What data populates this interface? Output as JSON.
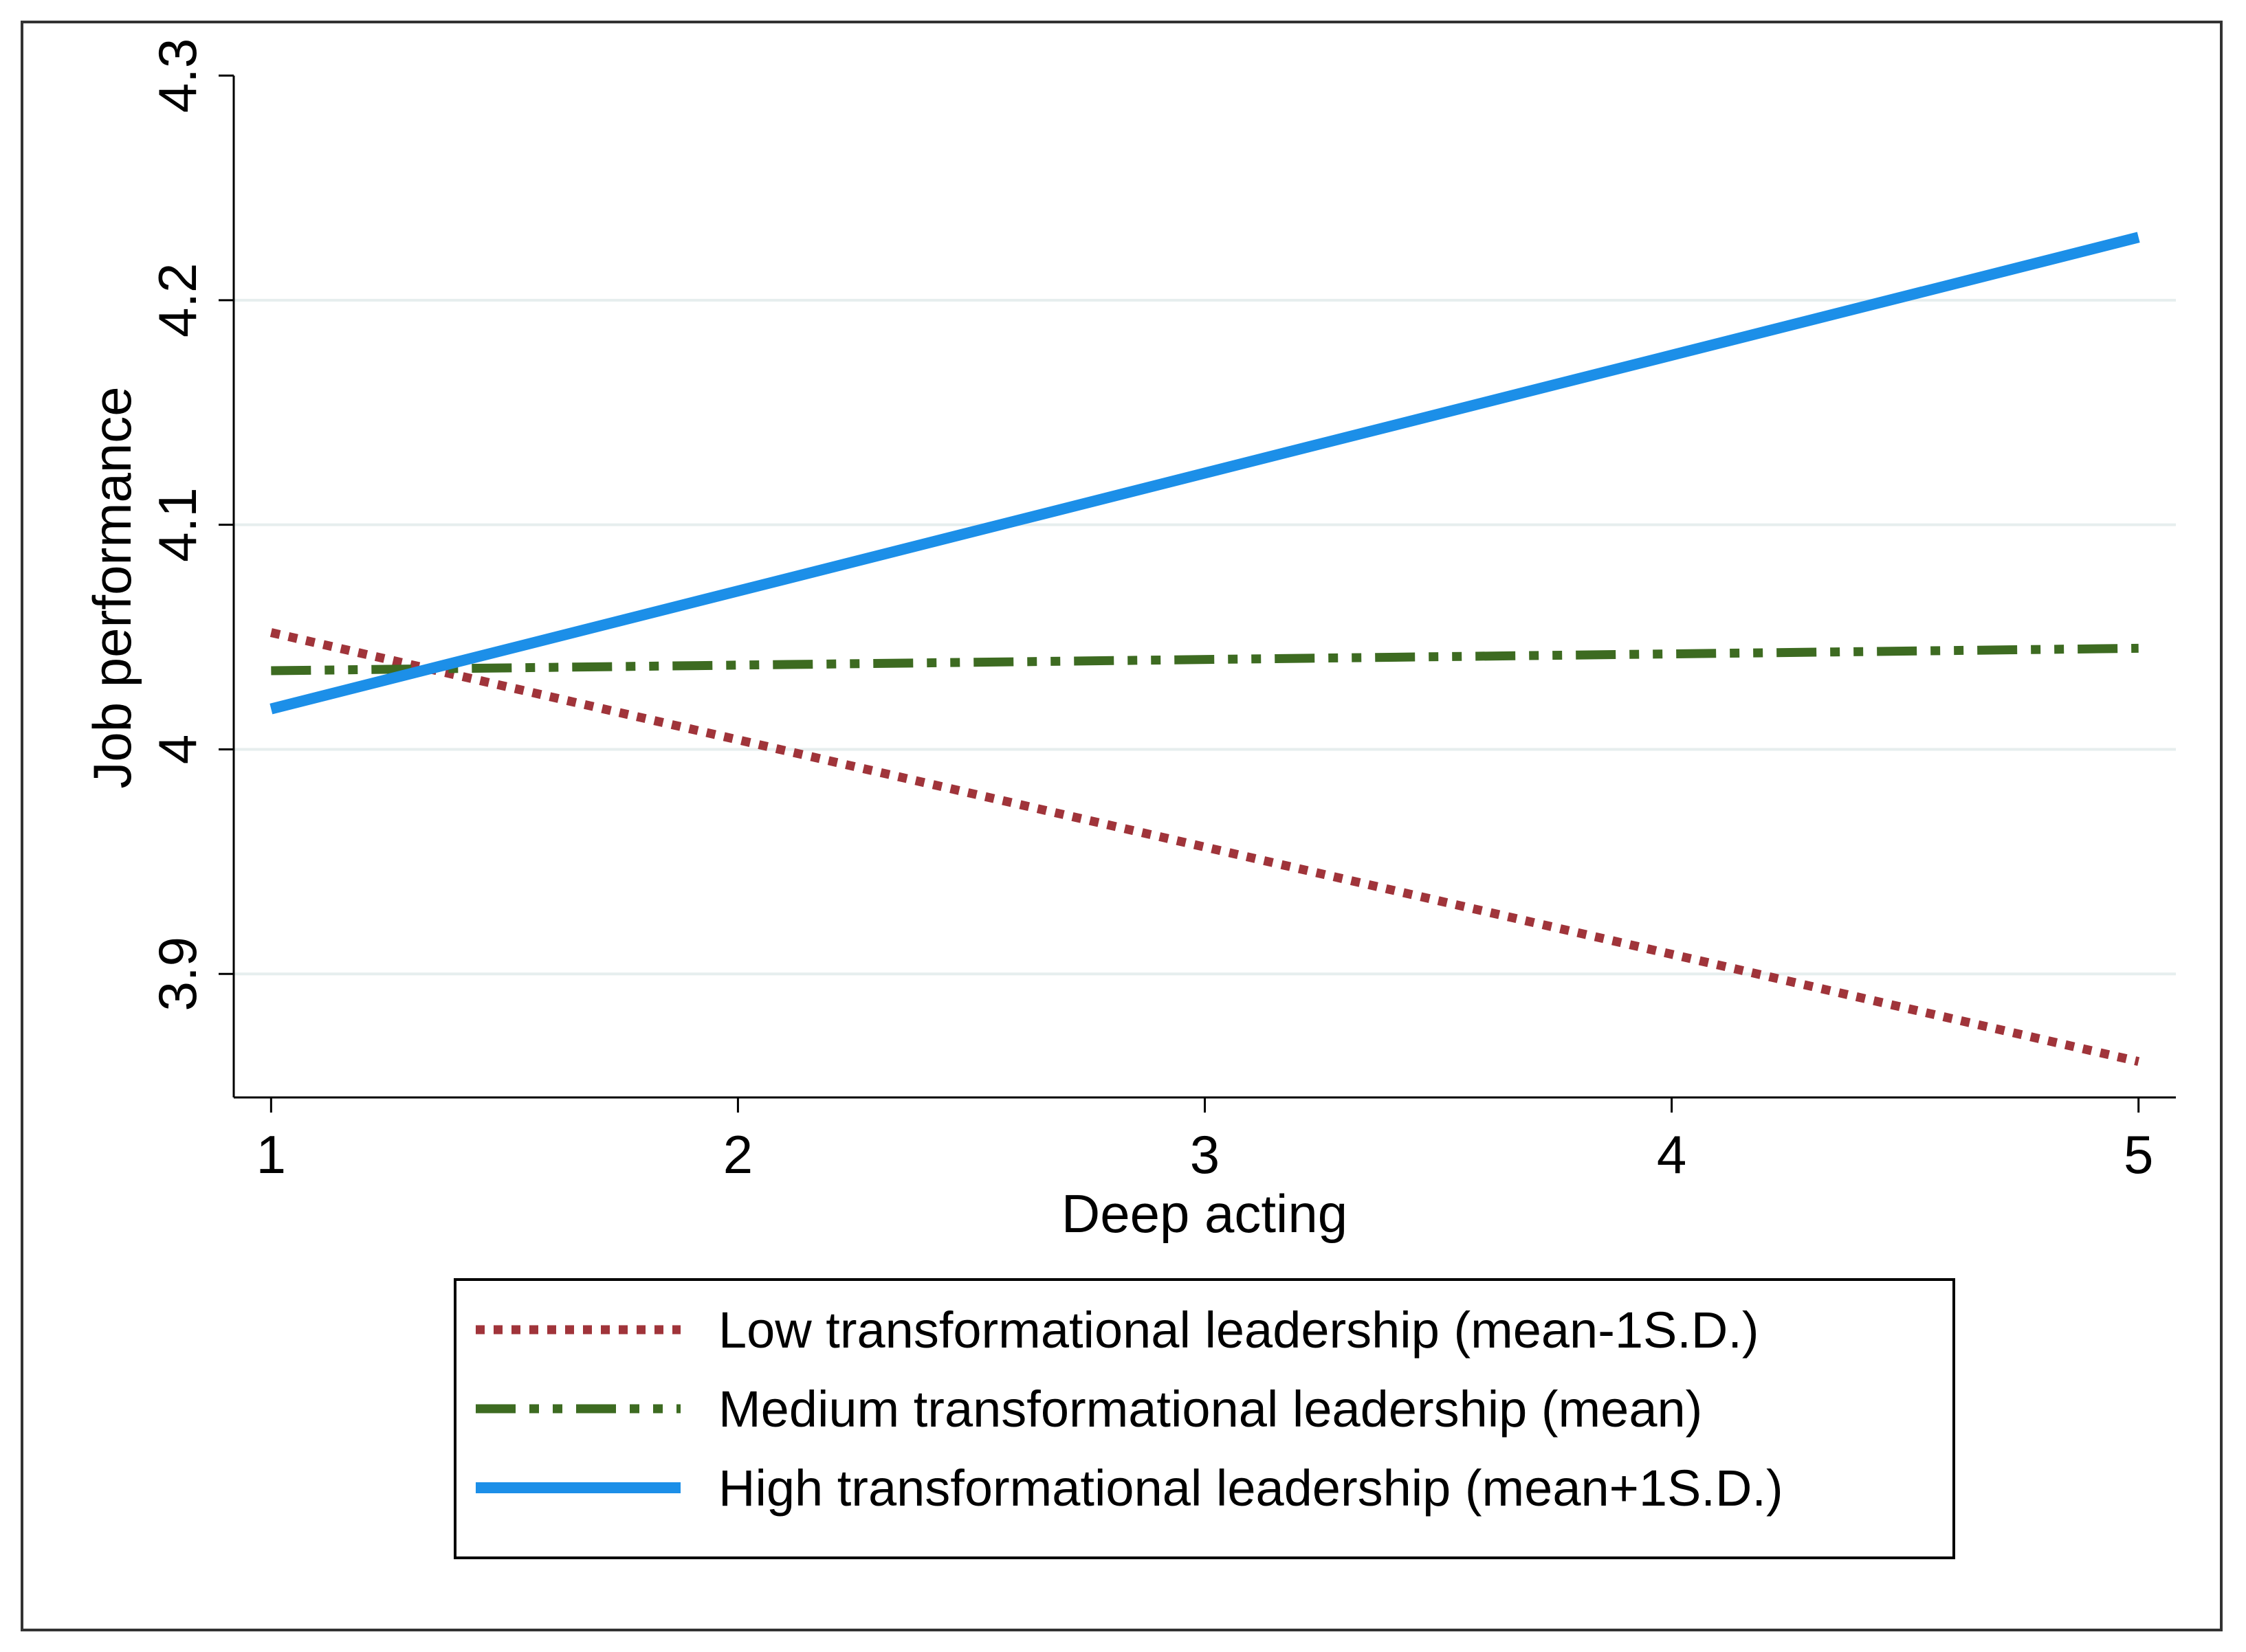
{
  "chart_data": {
    "type": "line",
    "title": "",
    "xlabel": "Deep acting",
    "ylabel": "Job performance",
    "xlim": [
      0.92,
      5.08
    ],
    "ylim": [
      3.845,
      4.3
    ],
    "x_ticks": [
      "1",
      "2",
      "3",
      "4",
      "5"
    ],
    "y_ticks": [
      "3.9",
      "4",
      "4.1",
      "4.2",
      "4.3"
    ],
    "grid": "horizontal",
    "legend_position": "bottom",
    "series": [
      {
        "name": "Low transformational leadership (mean-1S.D.)",
        "x": [
          1,
          5
        ],
        "y": [
          4.052,
          3.861
        ],
        "color": "#a0343a",
        "style": "dotted"
      },
      {
        "name": "Medium transformational leadership (mean)",
        "x": [
          1,
          5
        ],
        "y": [
          4.035,
          4.045
        ],
        "color": "#3d6b21",
        "style": "dash-dot"
      },
      {
        "name": "High transformational leadership (mean+1S.D.)",
        "x": [
          1,
          5
        ],
        "y": [
          4.018,
          4.228
        ],
        "color": "#1c8fe8",
        "style": "solid"
      }
    ]
  }
}
